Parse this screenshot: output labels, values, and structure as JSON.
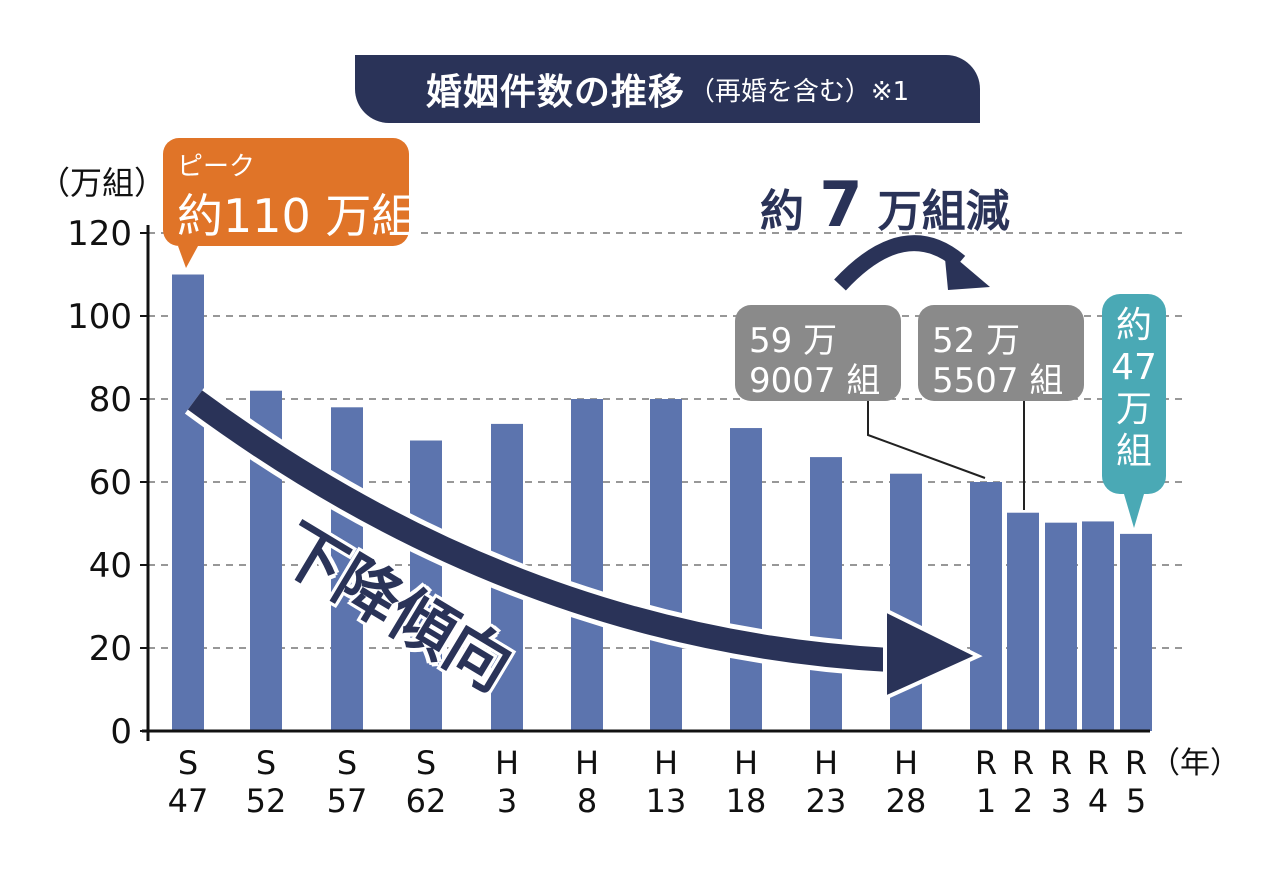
{
  "title": "婚姻件数の推移",
  "subtitle": "（再婚を含む）※1",
  "chart_data": {
    "type": "bar",
    "ylabel": "（万組）",
    "xunit": "（年）",
    "ylim": [
      0,
      120
    ],
    "yticks": [
      0,
      20,
      40,
      60,
      80,
      100,
      120
    ],
    "grid": true,
    "categories": [
      {
        "top": "S",
        "bottom": "47"
      },
      {
        "top": "S",
        "bottom": "52"
      },
      {
        "top": "S",
        "bottom": "57"
      },
      {
        "top": "S",
        "bottom": "62"
      },
      {
        "top": "H",
        "bottom": "3"
      },
      {
        "top": "H",
        "bottom": "8"
      },
      {
        "top": "H",
        "bottom": "13"
      },
      {
        "top": "H",
        "bottom": "18"
      },
      {
        "top": "H",
        "bottom": "23"
      },
      {
        "top": "H",
        "bottom": "28"
      },
      {
        "top": "R",
        "bottom": "1"
      },
      {
        "top": "R",
        "bottom": "2"
      },
      {
        "top": "R",
        "bottom": "3"
      },
      {
        "top": "R",
        "bottom": "4"
      },
      {
        "top": "R",
        "bottom": "5"
      }
    ],
    "values": [
      110,
      82,
      78,
      70,
      74,
      80,
      80,
      73,
      66,
      62,
      60,
      52.6,
      50.2,
      50.5,
      47.5
    ],
    "bar_color": "#5c74ae"
  },
  "annotations": {
    "peak_label": "ピーク",
    "peak_value": "約110 万組",
    "r1_line1": "59 万",
    "r1_line2": "9007 組",
    "r2_line1": "52 万",
    "r2_line2": "5507 組",
    "r5_value": [
      "約",
      "47",
      "万",
      "組"
    ],
    "decline_prefix": "約",
    "decline_number": "7",
    "decline_suffix": "万組減",
    "trend_label": "下降傾向"
  },
  "colors": {
    "navy": "#2a3358",
    "orange": "#e07428",
    "gray": "#8a8a8a",
    "teal": "#4aa9b5"
  }
}
